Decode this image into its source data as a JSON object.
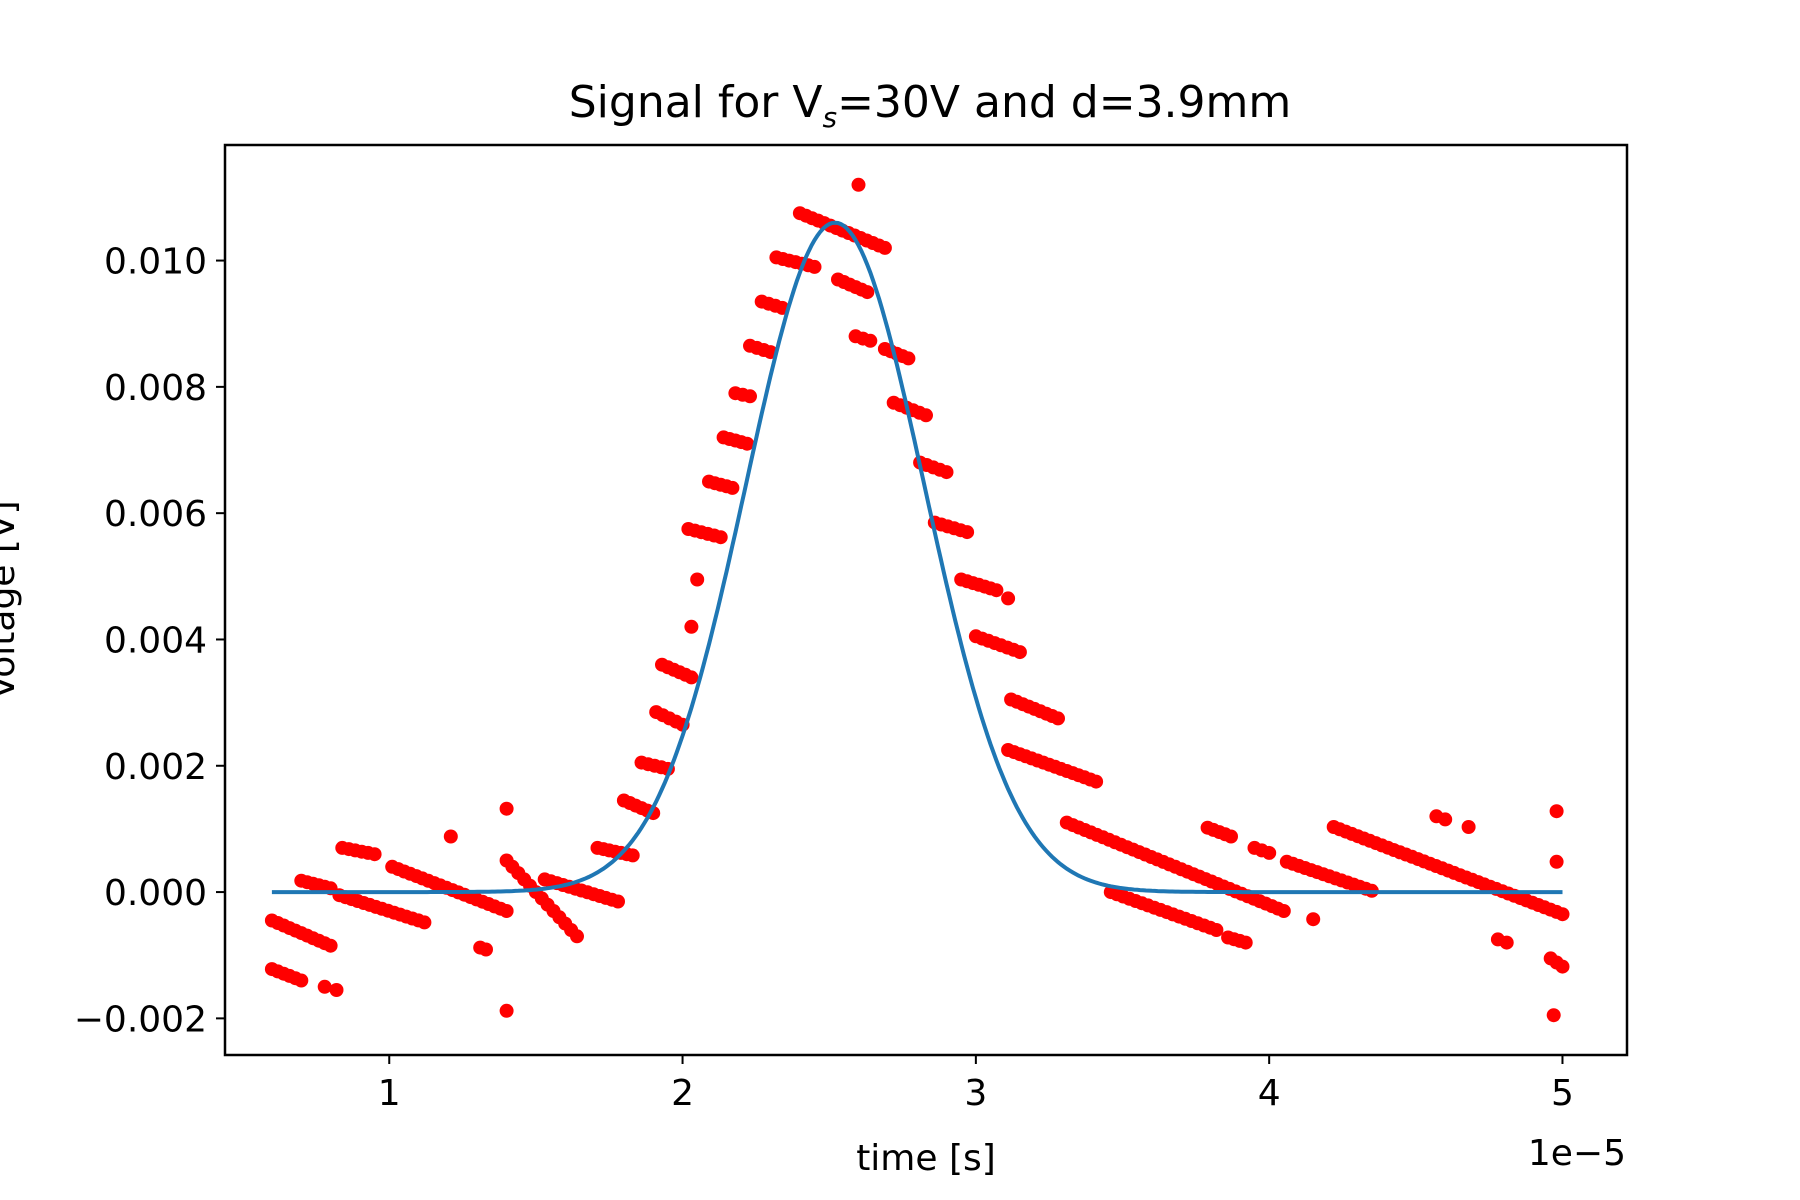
{
  "chart_data": {
    "type": "scatter",
    "title": {
      "prefix": "Signal for V",
      "subscript": "s",
      "suffix": "=30V and d=3.9mm"
    },
    "xlabel": "time [s]",
    "ylabel": "Voltage [V]",
    "x_offset_label": "1e−5",
    "xlim": [
      0.44,
      5.22
    ],
    "ylim": [
      -0.00258,
      0.01183
    ],
    "grid": false,
    "xticks": [
      1,
      2,
      3,
      4,
      5
    ],
    "xtick_labels": [
      "1",
      "2",
      "3",
      "4",
      "5"
    ],
    "yticks": [
      -0.002,
      0.0,
      0.002,
      0.004,
      0.006,
      0.008,
      0.01
    ],
    "ytick_labels": [
      "−0.002",
      "0.000",
      "0.002",
      "0.004",
      "0.006",
      "0.008",
      "0.010"
    ],
    "series": [
      {
        "kind": "points",
        "color": "#ff0000",
        "segments": [
          {
            "x": [
              0.6,
              0.8
            ],
            "y": [
              -0.00045,
              -0.00085
            ]
          },
          {
            "x": [
              0.6,
              0.7
            ],
            "y": [
              -0.00122,
              -0.0014
            ]
          },
          {
            "x": [
              0.7,
              0.8
            ],
            "y": [
              0.00018,
              6e-05
            ]
          },
          {
            "x": [
              0.84,
              0.95
            ],
            "y": [
              0.0007,
              0.0006
            ]
          },
          {
            "x": [
              0.83,
              1.12
            ],
            "y": [
              -5e-05,
              -0.00048
            ]
          },
          {
            "x": [
              1.01,
              1.4
            ],
            "y": [
              0.0004,
              -0.0003
            ]
          },
          {
            "x": [
              1.4,
              1.64
            ],
            "y": [
              0.0005,
              -0.0007
            ]
          },
          {
            "x": [
              1.53,
              1.78
            ],
            "y": [
              0.0002,
              -0.00015
            ]
          },
          {
            "x": [
              1.71,
              1.83
            ],
            "y": [
              0.0007,
              0.00058
            ]
          },
          {
            "x": [
              1.8,
              1.9
            ],
            "y": [
              0.00145,
              0.00125
            ]
          },
          {
            "x": [
              1.86,
              1.95
            ],
            "y": [
              0.00205,
              0.00195
            ]
          },
          {
            "x": [
              1.91,
              2.0
            ],
            "y": [
              0.00285,
              0.00265
            ]
          },
          {
            "x": [
              1.93,
              2.03
            ],
            "y": [
              0.0036,
              0.0034
            ]
          },
          {
            "x": [
              2.02,
              2.13
            ],
            "y": [
              0.00575,
              0.00562
            ]
          },
          {
            "x": [
              2.09,
              2.17
            ],
            "y": [
              0.0065,
              0.0064
            ]
          },
          {
            "x": [
              2.14,
              2.22
            ],
            "y": [
              0.0072,
              0.0071
            ]
          },
          {
            "x": [
              2.18,
              2.23
            ],
            "y": [
              0.0079,
              0.00785
            ]
          },
          {
            "x": [
              2.23,
              2.3
            ],
            "y": [
              0.00865,
              0.00855
            ]
          },
          {
            "x": [
              2.27,
              2.34
            ],
            "y": [
              0.00935,
              0.00925
            ]
          },
          {
            "x": [
              2.32,
              2.45
            ],
            "y": [
              0.01005,
              0.0099
            ]
          },
          {
            "x": [
              2.4,
              2.69
            ],
            "y": [
              0.01075,
              0.0102
            ]
          },
          {
            "x": [
              2.53,
              2.63
            ],
            "y": [
              0.0097,
              0.0095
            ]
          },
          {
            "x": [
              2.59,
              2.64
            ],
            "y": [
              0.0088,
              0.00873
            ]
          },
          {
            "x": [
              2.69,
              2.77
            ],
            "y": [
              0.0086,
              0.00845
            ]
          },
          {
            "x": [
              2.72,
              2.83
            ],
            "y": [
              0.00775,
              0.00755
            ]
          },
          {
            "x": [
              2.81,
              2.9
            ],
            "y": [
              0.0068,
              0.00665
            ]
          },
          {
            "x": [
              2.86,
              2.97
            ],
            "y": [
              0.00585,
              0.0057
            ]
          },
          {
            "x": [
              2.95,
              3.07
            ],
            "y": [
              0.00495,
              0.00478
            ]
          },
          {
            "x": [
              3.0,
              3.15
            ],
            "y": [
              0.00405,
              0.0038
            ]
          },
          {
            "x": [
              3.12,
              3.28
            ],
            "y": [
              0.00305,
              0.00275
            ]
          },
          {
            "x": [
              3.11,
              3.41
            ],
            "y": [
              0.00225,
              0.00175
            ]
          },
          {
            "x": [
              3.31,
              4.05
            ],
            "y": [
              0.0011,
              -0.0003
            ]
          },
          {
            "x": [
              3.46,
              3.82
            ],
            "y": [
              0.0,
              -0.0006
            ]
          },
          {
            "x": [
              3.79,
              3.87
            ],
            "y": [
              0.00102,
              0.00088
            ]
          },
          {
            "x": [
              3.86,
              3.92
            ],
            "y": [
              -0.00072,
              -0.0008
            ]
          },
          {
            "x": [
              3.95,
              4.0
            ],
            "y": [
              0.0007,
              0.00062
            ]
          },
          {
            "x": [
              4.06,
              4.35
            ],
            "y": [
              0.00048,
              2e-05
            ]
          },
          {
            "x": [
              4.22,
              5.0
            ],
            "y": [
              0.00103,
              -0.00035
            ]
          },
          {
            "x": [
              4.57,
              4.6
            ],
            "y": [
              0.0012,
              0.00115
            ]
          },
          {
            "x": [
              4.78,
              4.81
            ],
            "y": [
              -0.00075,
              -0.0008
            ]
          },
          {
            "x": [
              4.96,
              5.0
            ],
            "y": [
              -0.00105,
              -0.00118
            ]
          }
        ],
        "singles": [
          {
            "x": 0.78,
            "y": -0.0015
          },
          {
            "x": 0.82,
            "y": -0.00155
          },
          {
            "x": 1.21,
            "y": 0.00088
          },
          {
            "x": 1.31,
            "y": -0.00088
          },
          {
            "x": 1.33,
            "y": -0.00091
          },
          {
            "x": 1.4,
            "y": 0.00132
          },
          {
            "x": 1.4,
            "y": -0.00188
          },
          {
            "x": 2.05,
            "y": 0.00495
          },
          {
            "x": 2.03,
            "y": 0.0042
          },
          {
            "x": 2.6,
            "y": 0.0112
          },
          {
            "x": 3.11,
            "y": 0.00465
          },
          {
            "x": 4.15,
            "y": -0.00043
          },
          {
            "x": 4.68,
            "y": 0.00103
          },
          {
            "x": 4.98,
            "y": 0.00128
          },
          {
            "x": 4.98,
            "y": 0.00048
          },
          {
            "x": 4.97,
            "y": -0.00195
          }
        ]
      },
      {
        "kind": "line",
        "color": "#1f77b4",
        "model": "gaussian",
        "amplitude": 0.0106,
        "center": 2.52,
        "sigma": 0.305,
        "xrange": [
          0.6,
          5.0
        ]
      }
    ]
  }
}
